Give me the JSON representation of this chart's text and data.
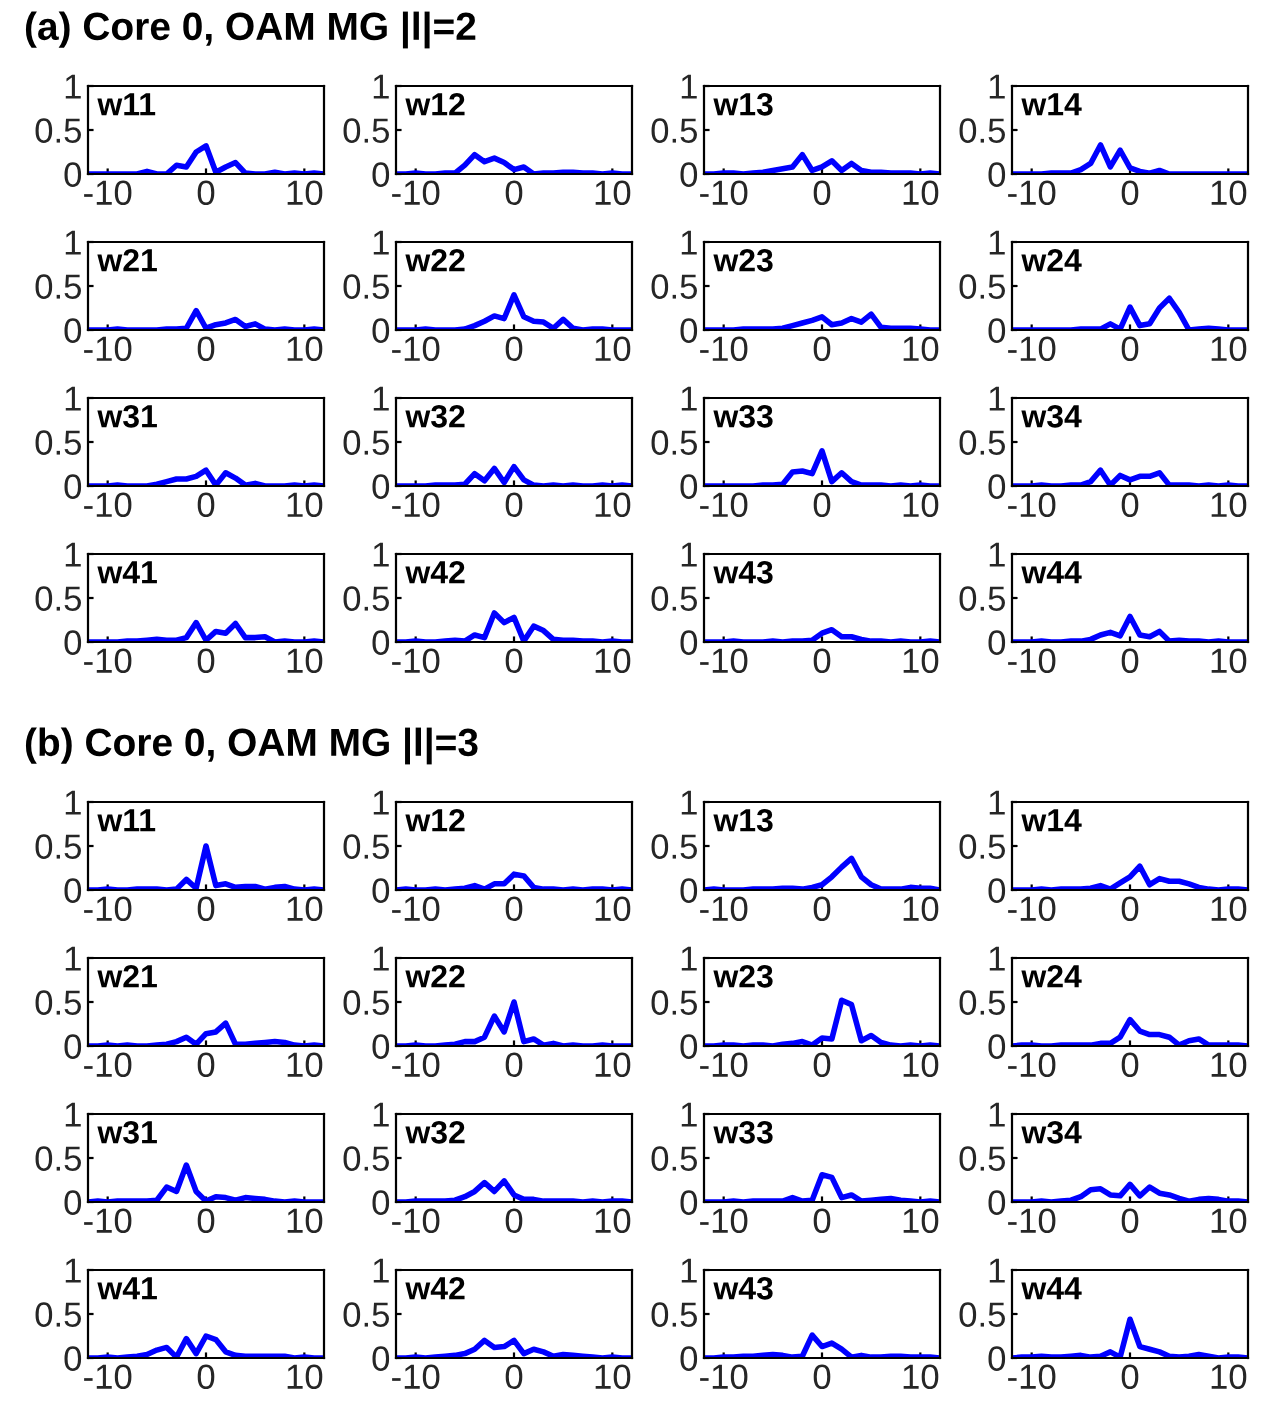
{
  "chart_data": [
    {
      "type": "line",
      "title": "w11",
      "annotations": [
        "(a) Core 0, OAM MG |l|=2"
      ],
      "x": [
        -12,
        -11,
        -10,
        -9,
        -8,
        -7,
        -6,
        -5,
        -4,
        -3,
        -2,
        -1,
        0,
        1,
        2,
        3,
        4,
        5,
        6,
        7,
        8,
        9,
        10,
        11,
        12
      ],
      "values": [
        0,
        0,
        0,
        0,
        0,
        0,
        0.03,
        0,
        0,
        0.1,
        0.08,
        0.25,
        0.32,
        0.02,
        0.08,
        0.13,
        0.01,
        0,
        0,
        0.02,
        0,
        0.01,
        0,
        0.01,
        0
      ],
      "color": "#0000ff",
      "xlim": [
        -12,
        12
      ],
      "xticks": [
        -10,
        0,
        10
      ],
      "ylim": [
        0,
        1
      ],
      "yticks": [
        0,
        0.5,
        1
      ]
    },
    {
      "type": "line",
      "title": "w12",
      "x": [
        -12,
        -11,
        -10,
        -9,
        -8,
        -7,
        -6,
        -5,
        -4,
        -3,
        -2,
        -1,
        0,
        1,
        2,
        3,
        4,
        5,
        6,
        7,
        8,
        9,
        10,
        11,
        12
      ],
      "values": [
        0,
        0,
        0.01,
        0,
        0,
        0.01,
        0.01,
        0.1,
        0.22,
        0.14,
        0.18,
        0.13,
        0.05,
        0.08,
        0,
        0.01,
        0.01,
        0.02,
        0.02,
        0.01,
        0.01,
        0,
        0.01,
        0,
        0
      ],
      "color": "#0000ff",
      "xlim": [
        -12,
        12
      ],
      "xticks": [
        -10,
        0,
        10
      ],
      "ylim": [
        0,
        1
      ],
      "yticks": [
        0,
        0.5,
        1
      ]
    },
    {
      "type": "line",
      "title": "w13",
      "x": [
        -12,
        -11,
        -10,
        -9,
        -8,
        -7,
        -6,
        -5,
        -4,
        -3,
        -2,
        -1,
        0,
        1,
        2,
        3,
        4,
        5,
        6,
        7,
        8,
        9,
        10,
        11,
        12
      ],
      "values": [
        0,
        0,
        0.01,
        0.01,
        0,
        0.01,
        0.02,
        0.04,
        0.06,
        0.08,
        0.22,
        0.04,
        0.08,
        0.15,
        0.04,
        0.12,
        0.04,
        0.02,
        0.02,
        0.01,
        0.01,
        0.01,
        0,
        0.01,
        0
      ],
      "color": "#0000ff",
      "xlim": [
        -12,
        12
      ],
      "xticks": [
        -10,
        0,
        10
      ],
      "ylim": [
        0,
        1
      ],
      "yticks": [
        0,
        0.5,
        1
      ]
    },
    {
      "type": "line",
      "title": "w14",
      "x": [
        -12,
        -11,
        -10,
        -9,
        -8,
        -7,
        -6,
        -5,
        -4,
        -3,
        -2,
        -1,
        0,
        1,
        2,
        3,
        4,
        5,
        6,
        7,
        8,
        9,
        10,
        11,
        12
      ],
      "values": [
        0,
        0,
        0,
        0,
        0.01,
        0.01,
        0.01,
        0.05,
        0.12,
        0.33,
        0.08,
        0.27,
        0.07,
        0.03,
        0.01,
        0.04,
        0,
        0,
        0,
        0,
        0,
        0,
        0,
        0,
        0
      ],
      "color": "#0000ff",
      "xlim": [
        -12,
        12
      ],
      "xticks": [
        -10,
        0,
        10
      ],
      "ylim": [
        0,
        1
      ],
      "yticks": [
        0,
        0.5,
        1
      ]
    },
    {
      "type": "line",
      "title": "w21",
      "x": [
        -12,
        -11,
        -10,
        -9,
        -8,
        -7,
        -6,
        -5,
        -4,
        -3,
        -2,
        -1,
        0,
        1,
        2,
        3,
        4,
        5,
        6,
        7,
        8,
        9,
        10,
        11,
        12
      ],
      "values": [
        0,
        0,
        0,
        0.01,
        0,
        0,
        0,
        0,
        0.01,
        0.01,
        0.02,
        0.22,
        0.02,
        0.06,
        0.08,
        0.12,
        0.04,
        0.07,
        0.01,
        0,
        0.01,
        0,
        0,
        0.01,
        0
      ],
      "color": "#0000ff",
      "xlim": [
        -12,
        12
      ],
      "xticks": [
        -10,
        0,
        10
      ],
      "ylim": [
        0,
        1
      ],
      "yticks": [
        0,
        0.5,
        1
      ]
    },
    {
      "type": "line",
      "title": "w22",
      "x": [
        -12,
        -11,
        -10,
        -9,
        -8,
        -7,
        -6,
        -5,
        -4,
        -3,
        -2,
        -1,
        0,
        1,
        2,
        3,
        4,
        5,
        6,
        7,
        8,
        9,
        10,
        11,
        12
      ],
      "values": [
        0,
        0,
        0,
        0.01,
        0,
        0,
        0,
        0.01,
        0.05,
        0.1,
        0.16,
        0.13,
        0.4,
        0.15,
        0.1,
        0.09,
        0.02,
        0.12,
        0.02,
        0,
        0.01,
        0.01,
        0,
        0,
        0
      ],
      "color": "#0000ff",
      "xlim": [
        -12,
        12
      ],
      "xticks": [
        -10,
        0,
        10
      ],
      "ylim": [
        0,
        1
      ],
      "yticks": [
        0,
        0.5,
        1
      ]
    },
    {
      "type": "line",
      "title": "w23",
      "x": [
        -12,
        -11,
        -10,
        -9,
        -8,
        -7,
        -6,
        -5,
        -4,
        -3,
        -2,
        -1,
        0,
        1,
        2,
        3,
        4,
        5,
        6,
        7,
        8,
        9,
        10,
        11,
        12
      ],
      "values": [
        0,
        0,
        0,
        0,
        0.01,
        0.01,
        0.01,
        0.01,
        0.02,
        0.05,
        0.08,
        0.11,
        0.15,
        0.06,
        0.08,
        0.13,
        0.09,
        0.18,
        0.03,
        0.02,
        0.02,
        0.02,
        0.01,
        0,
        0
      ],
      "color": "#0000ff",
      "xlim": [
        -12,
        12
      ],
      "xticks": [
        -10,
        0,
        10
      ],
      "ylim": [
        0,
        1
      ],
      "yticks": [
        0,
        0.5,
        1
      ]
    },
    {
      "type": "line",
      "title": "w24",
      "x": [
        -12,
        -11,
        -10,
        -9,
        -8,
        -7,
        -6,
        -5,
        -4,
        -3,
        -2,
        -1,
        0,
        1,
        2,
        3,
        4,
        5,
        6,
        7,
        8,
        9,
        10,
        11,
        12
      ],
      "values": [
        0,
        0,
        0,
        0,
        0,
        0,
        0,
        0.01,
        0.01,
        0.01,
        0.07,
        0.01,
        0.26,
        0.05,
        0.07,
        0.25,
        0.36,
        0.2,
        0,
        0.01,
        0.02,
        0.01,
        0,
        0,
        0
      ],
      "color": "#0000ff",
      "xlim": [
        -12,
        12
      ],
      "xticks": [
        -10,
        0,
        10
      ],
      "ylim": [
        0,
        1
      ],
      "yticks": [
        0,
        0.5,
        1
      ]
    },
    {
      "type": "line",
      "title": "w31",
      "x": [
        -12,
        -11,
        -10,
        -9,
        -8,
        -7,
        -6,
        -5,
        -4,
        -3,
        -2,
        -1,
        0,
        1,
        2,
        3,
        4,
        5,
        6,
        7,
        8,
        9,
        10,
        11,
        12
      ],
      "values": [
        0,
        0,
        0,
        0.01,
        0,
        0,
        0,
        0.02,
        0.05,
        0.08,
        0.08,
        0.11,
        0.18,
        0.01,
        0.15,
        0.09,
        0.01,
        0.03,
        0,
        0,
        0,
        0.01,
        0,
        0.01,
        0
      ],
      "color": "#0000ff",
      "xlim": [
        -12,
        12
      ],
      "xticks": [
        -10,
        0,
        10
      ],
      "ylim": [
        0,
        1
      ],
      "yticks": [
        0,
        0.5,
        1
      ]
    },
    {
      "type": "line",
      "title": "w32",
      "x": [
        -12,
        -11,
        -10,
        -9,
        -8,
        -7,
        -6,
        -5,
        -4,
        -3,
        -2,
        -1,
        0,
        1,
        2,
        3,
        4,
        5,
        6,
        7,
        8,
        9,
        10,
        11,
        12
      ],
      "values": [
        0,
        0,
        0,
        0,
        0.01,
        0.01,
        0.01,
        0.02,
        0.14,
        0.06,
        0.2,
        0.04,
        0.22,
        0.07,
        0.01,
        0,
        0.01,
        0,
        0.01,
        0,
        0,
        0.01,
        0,
        0.01,
        0
      ],
      "color": "#0000ff",
      "xlim": [
        -12,
        12
      ],
      "xticks": [
        -10,
        0,
        10
      ],
      "ylim": [
        0,
        1
      ],
      "yticks": [
        0,
        0.5,
        1
      ]
    },
    {
      "type": "line",
      "title": "w33",
      "x": [
        -12,
        -11,
        -10,
        -9,
        -8,
        -7,
        -6,
        -5,
        -4,
        -3,
        -2,
        -1,
        0,
        1,
        2,
        3,
        4,
        5,
        6,
        7,
        8,
        9,
        10,
        11,
        12
      ],
      "values": [
        0,
        0,
        0,
        0,
        0,
        0,
        0.01,
        0.01,
        0.02,
        0.16,
        0.17,
        0.14,
        0.4,
        0.05,
        0.15,
        0.05,
        0.01,
        0.01,
        0.01,
        0,
        0.01,
        0,
        0.01,
        0,
        0
      ],
      "color": "#0000ff",
      "xlim": [
        -12,
        12
      ],
      "xticks": [
        -10,
        0,
        10
      ],
      "ylim": [
        0,
        1
      ],
      "yticks": [
        0,
        0.5,
        1
      ]
    },
    {
      "type": "line",
      "title": "w34",
      "x": [
        -12,
        -11,
        -10,
        -9,
        -8,
        -7,
        -6,
        -5,
        -4,
        -3,
        -2,
        -1,
        0,
        1,
        2,
        3,
        4,
        5,
        6,
        7,
        8,
        9,
        10,
        11,
        12
      ],
      "values": [
        0,
        0,
        0,
        0.01,
        0,
        0,
        0.01,
        0.01,
        0.05,
        0.18,
        0.01,
        0.12,
        0.07,
        0.11,
        0.11,
        0.15,
        0.01,
        0.01,
        0.01,
        0,
        0.01,
        0,
        0.01,
        0,
        0
      ],
      "color": "#0000ff",
      "xlim": [
        -12,
        12
      ],
      "xticks": [
        -10,
        0,
        10
      ],
      "ylim": [
        0,
        1
      ],
      "yticks": [
        0,
        0.5,
        1
      ]
    },
    {
      "type": "line",
      "title": "w41",
      "x": [
        -12,
        -11,
        -10,
        -9,
        -8,
        -7,
        -6,
        -5,
        -4,
        -3,
        -2,
        -1,
        0,
        1,
        2,
        3,
        4,
        5,
        6,
        7,
        8,
        9,
        10,
        11,
        12
      ],
      "values": [
        0,
        0,
        0,
        0,
        0.01,
        0.01,
        0.02,
        0.03,
        0.02,
        0.02,
        0.05,
        0.22,
        0.02,
        0.12,
        0.1,
        0.21,
        0.05,
        0.05,
        0.06,
        0,
        0.01,
        0,
        0,
        0.01,
        0
      ],
      "color": "#0000ff",
      "xlim": [
        -12,
        12
      ],
      "xticks": [
        -10,
        0,
        10
      ],
      "ylim": [
        0,
        1
      ],
      "yticks": [
        0,
        0.5,
        1
      ]
    },
    {
      "type": "line",
      "title": "w42",
      "x": [
        -12,
        -11,
        -10,
        -9,
        -8,
        -7,
        -6,
        -5,
        -4,
        -3,
        -2,
        -1,
        0,
        1,
        2,
        3,
        4,
        5,
        6,
        7,
        8,
        9,
        10,
        11,
        12
      ],
      "values": [
        0,
        0,
        0.01,
        0,
        0,
        0.01,
        0.02,
        0.01,
        0.08,
        0.05,
        0.33,
        0.22,
        0.28,
        0.01,
        0.18,
        0.13,
        0.03,
        0.02,
        0.02,
        0.01,
        0.01,
        0,
        0.01,
        0,
        0
      ],
      "color": "#0000ff",
      "xlim": [
        -12,
        12
      ],
      "xticks": [
        -10,
        0,
        10
      ],
      "ylim": [
        0,
        1
      ],
      "yticks": [
        0,
        0.5,
        1
      ]
    },
    {
      "type": "line",
      "title": "w43",
      "x": [
        -12,
        -11,
        -10,
        -9,
        -8,
        -7,
        -6,
        -5,
        -4,
        -3,
        -2,
        -1,
        0,
        1,
        2,
        3,
        4,
        5,
        6,
        7,
        8,
        9,
        10,
        11,
        12
      ],
      "values": [
        0,
        0,
        0,
        0.01,
        0,
        0,
        0,
        0.01,
        0,
        0.01,
        0.01,
        0.02,
        0.1,
        0.14,
        0.06,
        0.06,
        0.03,
        0.01,
        0.01,
        0,
        0.01,
        0,
        0,
        0.01,
        0
      ],
      "color": "#0000ff",
      "xlim": [
        -12,
        12
      ],
      "xticks": [
        -10,
        0,
        10
      ],
      "ylim": [
        0,
        1
      ],
      "yticks": [
        0,
        0.5,
        1
      ]
    },
    {
      "type": "line",
      "title": "w44",
      "x": [
        -12,
        -11,
        -10,
        -9,
        -8,
        -7,
        -6,
        -5,
        -4,
        -3,
        -2,
        -1,
        0,
        1,
        2,
        3,
        4,
        5,
        6,
        7,
        8,
        9,
        10,
        11,
        12
      ],
      "values": [
        0,
        0,
        0,
        0.01,
        0,
        0,
        0.01,
        0.01,
        0.03,
        0.08,
        0.11,
        0.07,
        0.29,
        0.08,
        0.06,
        0.12,
        0.01,
        0.02,
        0.01,
        0.01,
        0,
        0.01,
        0,
        0,
        0
      ],
      "color": "#0000ff",
      "xlim": [
        -12,
        12
      ],
      "xticks": [
        -10,
        0,
        10
      ],
      "ylim": [
        0,
        1
      ],
      "yticks": [
        0,
        0.5,
        1
      ]
    },
    {
      "type": "line",
      "title": "w11",
      "annotations": [
        "(b) Core 0, OAM MG |l|=3"
      ],
      "x": [
        -12,
        -11,
        -10,
        -9,
        -8,
        -7,
        -6,
        -5,
        -4,
        -3,
        -2,
        -1,
        0,
        1,
        2,
        3,
        4,
        5,
        6,
        7,
        8,
        9,
        10,
        11,
        12
      ],
      "values": [
        0,
        0,
        0.01,
        0,
        0,
        0.01,
        0.01,
        0.01,
        0,
        0.01,
        0.12,
        0.02,
        0.5,
        0.05,
        0.07,
        0.03,
        0.04,
        0.04,
        0.01,
        0.03,
        0.04,
        0.01,
        0,
        0.01,
        0
      ],
      "color": "#0000ff",
      "xlim": [
        -12,
        12
      ],
      "xticks": [
        -10,
        0,
        10
      ],
      "ylim": [
        0,
        1
      ],
      "yticks": [
        0,
        0.5,
        1
      ]
    },
    {
      "type": "line",
      "title": "w12",
      "x": [
        -12,
        -11,
        -10,
        -9,
        -8,
        -7,
        -6,
        -5,
        -4,
        -3,
        -2,
        -1,
        0,
        1,
        2,
        3,
        4,
        5,
        6,
        7,
        8,
        9,
        10,
        11,
        12
      ],
      "values": [
        0,
        0.01,
        0,
        0,
        0.01,
        0,
        0.01,
        0.02,
        0.05,
        0.01,
        0.07,
        0.07,
        0.18,
        0.16,
        0.03,
        0.01,
        0.01,
        0,
        0.01,
        0,
        0.01,
        0.01,
        0,
        0.01,
        0
      ],
      "color": "#0000ff",
      "xlim": [
        -12,
        12
      ],
      "xticks": [
        -10,
        0,
        10
      ],
      "ylim": [
        0,
        1
      ],
      "yticks": [
        0,
        0.5,
        1
      ]
    },
    {
      "type": "line",
      "title": "w13",
      "x": [
        -12,
        -11,
        -10,
        -9,
        -8,
        -7,
        -6,
        -5,
        -4,
        -3,
        -2,
        -1,
        0,
        1,
        2,
        3,
        4,
        5,
        6,
        7,
        8,
        9,
        10,
        11,
        12
      ],
      "values": [
        0,
        0.01,
        0,
        0,
        0,
        0.01,
        0.01,
        0.01,
        0.02,
        0.02,
        0.01,
        0.03,
        0.06,
        0.15,
        0.26,
        0.36,
        0.15,
        0.06,
        0.01,
        0.01,
        0.01,
        0.03,
        0.02,
        0.02,
        0
      ],
      "color": "#0000ff",
      "xlim": [
        -12,
        12
      ],
      "xticks": [
        -10,
        0,
        10
      ],
      "ylim": [
        0,
        1
      ],
      "yticks": [
        0,
        0.5,
        1
      ]
    },
    {
      "type": "line",
      "title": "w14",
      "x": [
        -12,
        -11,
        -10,
        -9,
        -8,
        -7,
        -6,
        -5,
        -4,
        -3,
        -2,
        -1,
        0,
        1,
        2,
        3,
        4,
        5,
        6,
        7,
        8,
        9,
        10,
        11,
        12
      ],
      "values": [
        0,
        0,
        0,
        0.01,
        0,
        0.01,
        0.01,
        0.01,
        0.02,
        0.05,
        0.01,
        0.08,
        0.15,
        0.27,
        0.06,
        0.13,
        0.1,
        0.1,
        0.07,
        0.03,
        0.01,
        0,
        0.01,
        0.01,
        0
      ],
      "color": "#0000ff",
      "xlim": [
        -12,
        12
      ],
      "xticks": [
        -10,
        0,
        10
      ],
      "ylim": [
        0,
        1
      ],
      "yticks": [
        0,
        0.5,
        1
      ]
    },
    {
      "type": "line",
      "title": "w21",
      "x": [
        -12,
        -11,
        -10,
        -9,
        -8,
        -7,
        -6,
        -5,
        -4,
        -3,
        -2,
        -1,
        0,
        1,
        2,
        3,
        4,
        5,
        6,
        7,
        8,
        9,
        10,
        11,
        12
      ],
      "values": [
        0,
        0,
        0.01,
        0,
        0.01,
        0,
        0,
        0.01,
        0.02,
        0.05,
        0.1,
        0.02,
        0.14,
        0.16,
        0.26,
        0.02,
        0.02,
        0.03,
        0.04,
        0.05,
        0.04,
        0.01,
        0,
        0.01,
        0
      ],
      "color": "#0000ff",
      "xlim": [
        -12,
        12
      ],
      "xticks": [
        -10,
        0,
        10
      ],
      "ylim": [
        0,
        1
      ],
      "yticks": [
        0,
        0.5,
        1
      ]
    },
    {
      "type": "line",
      "title": "w22",
      "x": [
        -12,
        -11,
        -10,
        -9,
        -8,
        -7,
        -6,
        -5,
        -4,
        -3,
        -2,
        -1,
        0,
        1,
        2,
        3,
        4,
        5,
        6,
        7,
        8,
        9,
        10,
        11,
        12
      ],
      "values": [
        0,
        0,
        0.01,
        0,
        0,
        0.01,
        0.02,
        0.05,
        0.05,
        0.1,
        0.34,
        0.16,
        0.5,
        0.05,
        0.08,
        0.01,
        0.03,
        0,
        0.01,
        0,
        0,
        0.01,
        0,
        0,
        0
      ],
      "color": "#0000ff",
      "xlim": [
        -12,
        12
      ],
      "xticks": [
        -10,
        0,
        10
      ],
      "ylim": [
        0,
        1
      ],
      "yticks": [
        0,
        0.5,
        1
      ]
    },
    {
      "type": "line",
      "title": "w23",
      "x": [
        -12,
        -11,
        -10,
        -9,
        -8,
        -7,
        -6,
        -5,
        -4,
        -3,
        -2,
        -1,
        0,
        1,
        2,
        3,
        4,
        5,
        6,
        7,
        8,
        9,
        10,
        11,
        12
      ],
      "values": [
        0,
        0,
        0.01,
        0.01,
        0,
        0.01,
        0.01,
        0,
        0.02,
        0.03,
        0.05,
        0.01,
        0.09,
        0.08,
        0.52,
        0.47,
        0.06,
        0.12,
        0.04,
        0.01,
        0,
        0.01,
        0,
        0.01,
        0
      ],
      "color": "#0000ff",
      "xlim": [
        -12,
        12
      ],
      "xticks": [
        -10,
        0,
        10
      ],
      "ylim": [
        0,
        1
      ],
      "yticks": [
        0,
        0.5,
        1
      ]
    },
    {
      "type": "line",
      "title": "w24",
      "x": [
        -12,
        -11,
        -10,
        -9,
        -8,
        -7,
        -6,
        -5,
        -4,
        -3,
        -2,
        -1,
        0,
        1,
        2,
        3,
        4,
        5,
        6,
        7,
        8,
        9,
        10,
        11,
        12
      ],
      "values": [
        0,
        0.01,
        0.01,
        0,
        0,
        0.01,
        0.01,
        0.01,
        0.01,
        0.03,
        0.03,
        0.1,
        0.3,
        0.17,
        0.13,
        0.13,
        0.1,
        0.01,
        0.06,
        0.08,
        0.01,
        0.01,
        0.01,
        0.01,
        0
      ],
      "color": "#0000ff",
      "xlim": [
        -12,
        12
      ],
      "xticks": [
        -10,
        0,
        10
      ],
      "ylim": [
        0,
        1
      ],
      "yticks": [
        0,
        0.5,
        1
      ]
    },
    {
      "type": "line",
      "title": "w31",
      "x": [
        -12,
        -11,
        -10,
        -9,
        -8,
        -7,
        -6,
        -5,
        -4,
        -3,
        -2,
        -1,
        0,
        1,
        2,
        3,
        4,
        5,
        6,
        7,
        8,
        9,
        10,
        11,
        12
      ],
      "values": [
        0,
        0.01,
        0,
        0.01,
        0.01,
        0.01,
        0.01,
        0.02,
        0.17,
        0.12,
        0.42,
        0.12,
        0.01,
        0.06,
        0.05,
        0.02,
        0.05,
        0.04,
        0.03,
        0.01,
        0,
        0.01,
        0,
        0,
        0
      ],
      "color": "#0000ff",
      "xlim": [
        -12,
        12
      ],
      "xticks": [
        -10,
        0,
        10
      ],
      "ylim": [
        0,
        1
      ],
      "yticks": [
        0,
        0.5,
        1
      ]
    },
    {
      "type": "line",
      "title": "w32",
      "x": [
        -12,
        -11,
        -10,
        -9,
        -8,
        -7,
        -6,
        -5,
        -4,
        -3,
        -2,
        -1,
        0,
        1,
        2,
        3,
        4,
        5,
        6,
        7,
        8,
        9,
        10,
        11,
        12
      ],
      "values": [
        0,
        0,
        0.01,
        0.01,
        0.01,
        0.01,
        0.02,
        0.06,
        0.12,
        0.22,
        0.12,
        0.24,
        0.08,
        0.03,
        0.03,
        0.01,
        0.01,
        0.01,
        0.01,
        0,
        0.01,
        0,
        0.01,
        0.01,
        0
      ],
      "color": "#0000ff",
      "xlim": [
        -12,
        12
      ],
      "xticks": [
        -10,
        0,
        10
      ],
      "ylim": [
        0,
        1
      ],
      "yticks": [
        0,
        0.5,
        1
      ]
    },
    {
      "type": "line",
      "title": "w33",
      "x": [
        -12,
        -11,
        -10,
        -9,
        -8,
        -7,
        -6,
        -5,
        -4,
        -3,
        -2,
        -1,
        0,
        1,
        2,
        3,
        4,
        5,
        6,
        7,
        8,
        9,
        10,
        11,
        12
      ],
      "values": [
        0,
        0,
        0,
        0.01,
        0,
        0.01,
        0.01,
        0.01,
        0.01,
        0.05,
        0.01,
        0.02,
        0.31,
        0.28,
        0.05,
        0.08,
        0.01,
        0.02,
        0.03,
        0.04,
        0.02,
        0.01,
        0,
        0.01,
        0
      ],
      "color": "#0000ff",
      "xlim": [
        -12,
        12
      ],
      "xticks": [
        -10,
        0,
        10
      ],
      "ylim": [
        0,
        1
      ],
      "yticks": [
        0,
        0.5,
        1
      ]
    },
    {
      "type": "line",
      "title": "w34",
      "x": [
        -12,
        -11,
        -10,
        -9,
        -8,
        -7,
        -6,
        -5,
        -4,
        -3,
        -2,
        -1,
        0,
        1,
        2,
        3,
        4,
        5,
        6,
        7,
        8,
        9,
        10,
        11,
        12
      ],
      "values": [
        0,
        0,
        0,
        0.01,
        0,
        0.01,
        0.02,
        0.06,
        0.14,
        0.15,
        0.08,
        0.07,
        0.2,
        0.07,
        0.17,
        0.1,
        0.08,
        0.04,
        0.01,
        0.03,
        0.04,
        0.03,
        0.01,
        0.01,
        0
      ],
      "color": "#0000ff",
      "xlim": [
        -12,
        12
      ],
      "xticks": [
        -10,
        0,
        10
      ],
      "ylim": [
        0,
        1
      ],
      "yticks": [
        0,
        0.5,
        1
      ]
    },
    {
      "type": "line",
      "title": "w41",
      "x": [
        -12,
        -11,
        -10,
        -9,
        -8,
        -7,
        -6,
        -5,
        -4,
        -3,
        -2,
        -1,
        0,
        1,
        2,
        3,
        4,
        5,
        6,
        7,
        8,
        9,
        10,
        11,
        12
      ],
      "values": [
        0,
        0,
        0.01,
        0,
        0.01,
        0.02,
        0.04,
        0.09,
        0.12,
        0.01,
        0.22,
        0.05,
        0.25,
        0.21,
        0.07,
        0.03,
        0.02,
        0.02,
        0.02,
        0.02,
        0.02,
        0,
        0.01,
        0,
        0
      ],
      "color": "#0000ff",
      "xlim": [
        -12,
        12
      ],
      "xticks": [
        -10,
        0,
        10
      ],
      "ylim": [
        0,
        1
      ],
      "yticks": [
        0,
        0.5,
        1
      ]
    },
    {
      "type": "line",
      "title": "w42",
      "x": [
        -12,
        -11,
        -10,
        -9,
        -8,
        -7,
        -6,
        -5,
        -4,
        -3,
        -2,
        -1,
        0,
        1,
        2,
        3,
        4,
        5,
        6,
        7,
        8,
        9,
        10,
        11,
        12
      ],
      "values": [
        0,
        0,
        0.01,
        0,
        0.01,
        0.02,
        0.03,
        0.05,
        0.1,
        0.2,
        0.12,
        0.13,
        0.2,
        0.05,
        0.1,
        0.07,
        0.02,
        0.04,
        0.03,
        0.02,
        0.01,
        0,
        0.01,
        0,
        0
      ],
      "color": "#0000ff",
      "xlim": [
        -12,
        12
      ],
      "xticks": [
        -10,
        0,
        10
      ],
      "ylim": [
        0,
        1
      ],
      "yticks": [
        0,
        0.5,
        1
      ]
    },
    {
      "type": "line",
      "title": "w43",
      "x": [
        -12,
        -11,
        -10,
        -9,
        -8,
        -7,
        -6,
        -5,
        -4,
        -3,
        -2,
        -1,
        0,
        1,
        2,
        3,
        4,
        5,
        6,
        7,
        8,
        9,
        10,
        11,
        12
      ],
      "values": [
        0,
        0,
        0.01,
        0.01,
        0.02,
        0.02,
        0.03,
        0.04,
        0.03,
        0.01,
        0.02,
        0.26,
        0.13,
        0.17,
        0.1,
        0.01,
        0.03,
        0.01,
        0.01,
        0.02,
        0.02,
        0.01,
        0.01,
        0.01,
        0
      ],
      "color": "#0000ff",
      "xlim": [
        -12,
        12
      ],
      "xticks": [
        -10,
        0,
        10
      ],
      "ylim": [
        0,
        1
      ],
      "yticks": [
        0,
        0.5,
        1
      ]
    },
    {
      "type": "line",
      "title": "w44",
      "x": [
        -12,
        -11,
        -10,
        -9,
        -8,
        -7,
        -6,
        -5,
        -4,
        -3,
        -2,
        -1,
        0,
        1,
        2,
        3,
        4,
        5,
        6,
        7,
        8,
        9,
        10,
        11,
        12
      ],
      "values": [
        0,
        0.01,
        0.01,
        0.02,
        0.01,
        0.01,
        0.02,
        0.03,
        0.01,
        0.02,
        0.07,
        0.01,
        0.44,
        0.13,
        0.1,
        0.07,
        0.02,
        0.01,
        0.02,
        0.04,
        0.02,
        0,
        0.01,
        0.01,
        0
      ],
      "color": "#0000ff",
      "xlim": [
        -12,
        12
      ],
      "xticks": [
        -10,
        0,
        10
      ],
      "ylim": [
        0,
        1
      ],
      "yticks": [
        0,
        0.5,
        1
      ]
    }
  ]
}
